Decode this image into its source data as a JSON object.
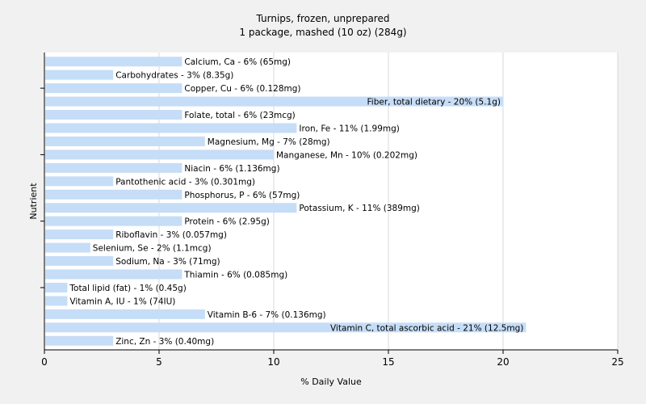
{
  "chart_data": {
    "type": "bar",
    "orientation": "horizontal",
    "title": "Turnips, frozen, unprepared",
    "subtitle": "1 package, mashed (10 oz) (284g)",
    "xlabel": "% Daily Value",
    "ylabel": "Nutrient",
    "xlim": [
      0,
      25
    ],
    "xticks": [
      0,
      5,
      10,
      15,
      20,
      25
    ],
    "grid": true,
    "bar_color": "#c6ddf7",
    "categories": [
      "Calcium, Ca",
      "Carbohydrates",
      "Copper, Cu",
      "Fiber, total dietary",
      "Folate, total",
      "Iron, Fe",
      "Magnesium, Mg",
      "Manganese, Mn",
      "Niacin",
      "Pantothenic acid",
      "Phosphorus, P",
      "Potassium, K",
      "Protein",
      "Riboflavin",
      "Selenium, Se",
      "Sodium, Na",
      "Thiamin",
      "Total lipid (fat)",
      "Vitamin A, IU",
      "Vitamin B-6",
      "Vitamin C, total ascorbic acid",
      "Zinc, Zn"
    ],
    "values": [
      6,
      3,
      6,
      20,
      6,
      11,
      7,
      10,
      6,
      3,
      6,
      11,
      6,
      3,
      2,
      3,
      6,
      1,
      1,
      7,
      21,
      3
    ],
    "labels": [
      "Calcium, Ca - 6% (65mg)",
      "Carbohydrates - 3% (8.35g)",
      "Copper, Cu - 6% (0.128mg)",
      "Fiber, total dietary - 20% (5.1g)",
      "Folate, total - 6% (23mcg)",
      "Iron, Fe - 11% (1.99mg)",
      "Magnesium, Mg - 7% (28mg)",
      "Manganese, Mn - 10% (0.202mg)",
      "Niacin - 6% (1.136mg)",
      "Pantothenic acid - 3% (0.301mg)",
      "Phosphorus, P - 6% (57mg)",
      "Potassium, K - 11% (389mg)",
      "Protein - 6% (2.95g)",
      "Riboflavin - 3% (0.057mg)",
      "Selenium, Se - 2% (1.1mcg)",
      "Sodium, Na - 3% (71mg)",
      "Thiamin - 6% (0.085mg)",
      "Total lipid (fat) - 1% (0.45g)",
      "Vitamin A, IU - 1% (74IU)",
      "Vitamin B-6 - 7% (0.136mg)",
      "Vitamin C, total ascorbic acid - 21% (12.5mg)",
      "Zinc, Zn - 3% (0.40mg)"
    ]
  }
}
